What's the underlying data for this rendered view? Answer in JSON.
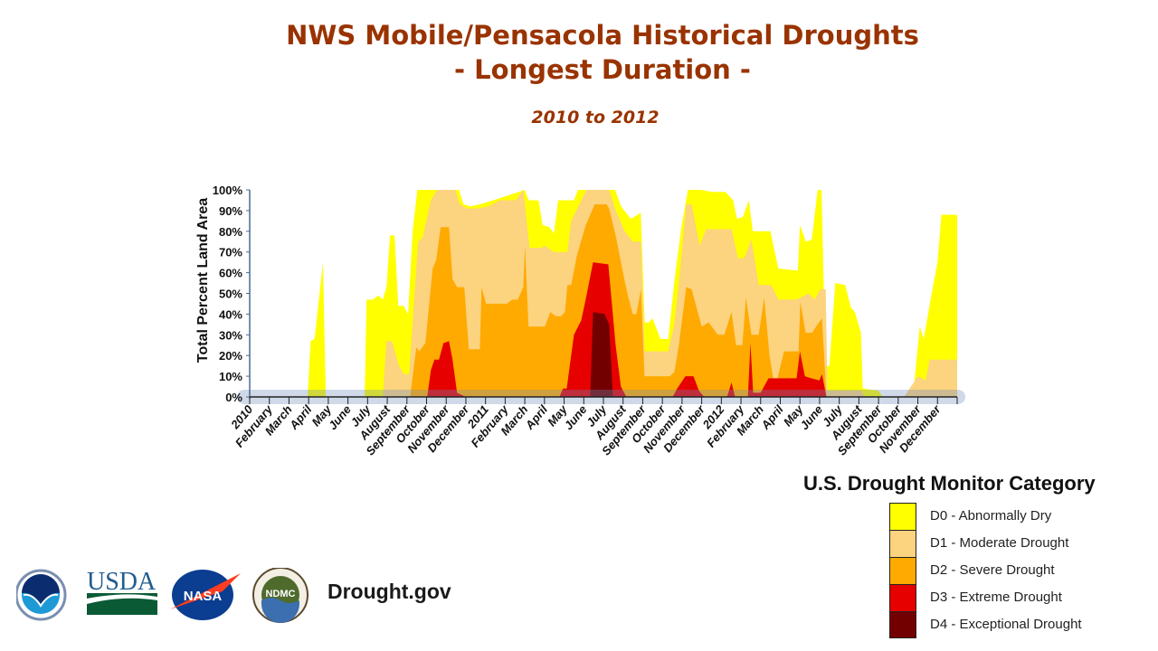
{
  "header": {
    "title_line1": "NWS Mobile/Pensacola Historical Droughts",
    "title_line2": "- Longest Duration -",
    "subtitle": "2010 to 2012"
  },
  "legend": {
    "title": "U.S. Drought Monitor Category",
    "items": [
      {
        "label": "D0 - Abnormally Dry",
        "color": "#FFFF00"
      },
      {
        "label": "D1 - Moderate Drought",
        "color": "#FCD37F"
      },
      {
        "label": "D2 - Severe Drought",
        "color": "#FFAA00"
      },
      {
        "label": "D3 - Extreme Drought",
        "color": "#E60000"
      },
      {
        "label": "D4 - Exceptional Drought",
        "color": "#730000"
      }
    ]
  },
  "footer": {
    "logos": [
      "NOAA",
      "USDA",
      "NASA",
      "NDMC"
    ],
    "site": "Drought.gov"
  },
  "chart_data": {
    "type": "area",
    "title": "NWS Mobile/Pensacola Historical Droughts - Longest Duration -",
    "subtitle": "2010 to 2012",
    "xlabel": "",
    "ylabel": "Total Percent Land Area",
    "ylim": [
      0,
      100
    ],
    "xlim_months": [
      0,
      36
    ],
    "x_unit": "months since Jan 2010",
    "yticks": [
      "0%",
      "10%",
      "20%",
      "30%",
      "40%",
      "50%",
      "60%",
      "70%",
      "80%",
      "90%",
      "100%"
    ],
    "xticks": [
      "2010",
      "February",
      "March",
      "April",
      "May",
      "June",
      "July",
      "August",
      "September",
      "October",
      "November",
      "December",
      "2011",
      "February",
      "March",
      "April",
      "May",
      "June",
      "July",
      "August",
      "September",
      "October",
      "November",
      "December",
      "2012",
      "February",
      "March",
      "April",
      "May",
      "June",
      "July",
      "August",
      "September",
      "October",
      "November",
      "December"
    ],
    "stacking": "cumulative (each series = that category or worse)",
    "series": [
      {
        "name": "D0-D4",
        "color": "#FFFF00",
        "points": [
          [
            0,
            0
          ],
          [
            2.95,
            0
          ],
          [
            3.1,
            27
          ],
          [
            3.3,
            28
          ],
          [
            3.73,
            65
          ],
          [
            3.87,
            0
          ],
          [
            5.85,
            0
          ],
          [
            5.95,
            47
          ],
          [
            6.27,
            47
          ],
          [
            6.54,
            49
          ],
          [
            6.77,
            47
          ],
          [
            6.96,
            53
          ],
          [
            7.14,
            78
          ],
          [
            7.37,
            78
          ],
          [
            7.56,
            44
          ],
          [
            7.83,
            44
          ],
          [
            8.06,
            40
          ],
          [
            8.29,
            80
          ],
          [
            8.53,
            100
          ],
          [
            10.65,
            100
          ],
          [
            10.88,
            93
          ],
          [
            11.24,
            92
          ],
          [
            11.7,
            93
          ],
          [
            12.4,
            95
          ],
          [
            14.0,
            100
          ],
          [
            14.2,
            95
          ],
          [
            14.7,
            95
          ],
          [
            14.9,
            83
          ],
          [
            15.25,
            82
          ],
          [
            15.48,
            79
          ],
          [
            15.7,
            95
          ],
          [
            16.5,
            95
          ],
          [
            16.7,
            100
          ],
          [
            18.6,
            100
          ],
          [
            18.9,
            92
          ],
          [
            19.4,
            86
          ],
          [
            19.9,
            89
          ],
          [
            20.1,
            36
          ],
          [
            20.3,
            36
          ],
          [
            20.5,
            38
          ],
          [
            20.9,
            28
          ],
          [
            21.3,
            28
          ],
          [
            21.6,
            55
          ],
          [
            21.97,
            82
          ],
          [
            22.3,
            100
          ],
          [
            23.0,
            100
          ],
          [
            23.5,
            99
          ],
          [
            24.2,
            99
          ],
          [
            24.6,
            95
          ],
          [
            24.8,
            86
          ],
          [
            25.1,
            87
          ],
          [
            25.4,
            95
          ],
          [
            25.6,
            80
          ],
          [
            26.5,
            80
          ],
          [
            26.9,
            62
          ],
          [
            27.9,
            61
          ],
          [
            28.0,
            83
          ],
          [
            28.3,
            75
          ],
          [
            28.6,
            76
          ],
          [
            28.9,
            100
          ],
          [
            29.1,
            100
          ],
          [
            29.3,
            15
          ],
          [
            29.5,
            15
          ],
          [
            29.8,
            55
          ],
          [
            30.3,
            54
          ],
          [
            30.6,
            43
          ],
          [
            30.8,
            41
          ],
          [
            31.1,
            31
          ],
          [
            31.2,
            4
          ],
          [
            32.0,
            3
          ],
          [
            32.2,
            0
          ],
          [
            33.4,
            0
          ],
          [
            33.8,
            5
          ],
          [
            34.1,
            34
          ],
          [
            34.3,
            28
          ],
          [
            34.7,
            50
          ],
          [
            35.0,
            65
          ],
          [
            35.2,
            88
          ],
          [
            36.0,
            88
          ]
        ]
      },
      {
        "name": "D1-D4",
        "color": "#FCD37F",
        "points": [
          [
            6.77,
            0
          ],
          [
            6.96,
            27
          ],
          [
            7.23,
            27
          ],
          [
            7.6,
            15
          ],
          [
            7.83,
            11
          ],
          [
            8.11,
            11
          ],
          [
            8.57,
            75
          ],
          [
            8.8,
            77
          ],
          [
            9.22,
            95
          ],
          [
            9.54,
            100
          ],
          [
            10.46,
            100
          ],
          [
            10.69,
            93
          ],
          [
            11.06,
            91
          ],
          [
            11.57,
            91
          ],
          [
            12.17,
            92
          ],
          [
            12.72,
            95
          ],
          [
            13.55,
            95
          ],
          [
            13.92,
            100
          ],
          [
            14.24,
            72
          ],
          [
            14.84,
            72
          ],
          [
            15.02,
            73
          ],
          [
            15.48,
            70
          ],
          [
            16.17,
            70
          ],
          [
            16.36,
            85
          ],
          [
            17.14,
            100
          ],
          [
            18.29,
            100
          ],
          [
            18.62,
            90
          ],
          [
            19.08,
            80
          ],
          [
            19.49,
            75
          ],
          [
            19.91,
            75
          ],
          [
            20.09,
            22
          ],
          [
            21.29,
            22
          ],
          [
            21.61,
            35
          ],
          [
            21.84,
            55
          ],
          [
            22.21,
            93
          ],
          [
            22.49,
            93
          ],
          [
            22.9,
            73
          ],
          [
            23.23,
            81
          ],
          [
            24.52,
            81
          ],
          [
            24.84,
            67
          ],
          [
            25.16,
            67
          ],
          [
            25.53,
            76
          ],
          [
            25.9,
            54
          ],
          [
            26.54,
            54
          ],
          [
            26.91,
            47
          ],
          [
            27.83,
            47
          ],
          [
            28.43,
            50
          ],
          [
            28.76,
            47
          ],
          [
            29.03,
            52
          ],
          [
            29.31,
            52
          ],
          [
            29.4,
            3
          ],
          [
            31.1,
            3
          ],
          [
            31.3,
            0
          ],
          [
            33.3,
            0
          ],
          [
            34.0,
            10
          ],
          [
            34.4,
            8
          ],
          [
            34.6,
            18
          ],
          [
            36.0,
            18
          ]
        ]
      },
      {
        "name": "D2-D4",
        "color": "#FFAA00",
        "points": [
          [
            8.16,
            0
          ],
          [
            8.48,
            24
          ],
          [
            8.62,
            22
          ],
          [
            8.94,
            26
          ],
          [
            9.31,
            62
          ],
          [
            9.49,
            66
          ],
          [
            9.72,
            82
          ],
          [
            10.14,
            82
          ],
          [
            10.32,
            57
          ],
          [
            10.55,
            53
          ],
          [
            10.92,
            53
          ],
          [
            11.15,
            23
          ],
          [
            11.71,
            23
          ],
          [
            11.8,
            53
          ],
          [
            12.03,
            45
          ],
          [
            13.09,
            45
          ],
          [
            13.36,
            47
          ],
          [
            13.64,
            47
          ],
          [
            13.92,
            53
          ],
          [
            14.01,
            73
          ],
          [
            14.19,
            34
          ],
          [
            15.02,
            34
          ],
          [
            15.3,
            41
          ],
          [
            15.58,
            39
          ],
          [
            15.85,
            39
          ],
          [
            16.04,
            41
          ],
          [
            16.17,
            54
          ],
          [
            16.36,
            54
          ],
          [
            16.64,
            68
          ],
          [
            17.1,
            83
          ],
          [
            17.56,
            93
          ],
          [
            18.16,
            93
          ],
          [
            18.29,
            91
          ],
          [
            18.62,
            78
          ],
          [
            19.08,
            56
          ],
          [
            19.22,
            50
          ],
          [
            19.49,
            40
          ],
          [
            19.68,
            40
          ],
          [
            19.91,
            52
          ],
          [
            20.09,
            10
          ],
          [
            21.38,
            10
          ],
          [
            21.61,
            12
          ],
          [
            21.84,
            25
          ],
          [
            22.21,
            53
          ],
          [
            22.49,
            52
          ],
          [
            23.0,
            34
          ],
          [
            23.36,
            36
          ],
          [
            23.82,
            30
          ],
          [
            24.15,
            30
          ],
          [
            24.52,
            41
          ],
          [
            24.75,
            25
          ],
          [
            25.07,
            25
          ],
          [
            25.25,
            48
          ],
          [
            25.53,
            30
          ],
          [
            25.9,
            30
          ],
          [
            26.18,
            48
          ],
          [
            26.45,
            20
          ],
          [
            26.73,
            4
          ],
          [
            27.19,
            22
          ],
          [
            27.93,
            22
          ],
          [
            28.02,
            46
          ],
          [
            28.29,
            31
          ],
          [
            28.62,
            31
          ],
          [
            28.89,
            35
          ],
          [
            29.12,
            38
          ],
          [
            29.35,
            0
          ]
        ]
      },
      {
        "name": "D3-D4",
        "color": "#E60000",
        "points": [
          [
            9.03,
            0
          ],
          [
            9.22,
            13
          ],
          [
            9.4,
            18
          ],
          [
            9.63,
            18
          ],
          [
            9.86,
            26
          ],
          [
            10.14,
            27
          ],
          [
            10.32,
            18
          ],
          [
            10.55,
            2
          ],
          [
            11.0,
            0
          ],
          [
            15.76,
            0
          ],
          [
            15.94,
            4
          ],
          [
            16.13,
            4
          ],
          [
            16.5,
            30
          ],
          [
            16.87,
            37
          ],
          [
            17.14,
            49
          ],
          [
            17.47,
            65
          ],
          [
            18.25,
            64
          ],
          [
            18.62,
            25
          ],
          [
            18.89,
            5
          ],
          [
            19.17,
            0
          ],
          [
            21.52,
            0
          ],
          [
            21.75,
            4
          ],
          [
            22.17,
            10
          ],
          [
            22.58,
            10
          ],
          [
            22.86,
            3
          ],
          [
            23.13,
            0
          ],
          [
            24.29,
            0
          ],
          [
            24.52,
            7
          ],
          [
            24.7,
            0
          ],
          [
            25.35,
            0
          ],
          [
            25.48,
            26
          ],
          [
            25.62,
            2
          ],
          [
            26.0,
            2
          ],
          [
            26.4,
            9
          ],
          [
            27.83,
            9
          ],
          [
            28.0,
            22
          ],
          [
            28.25,
            10
          ],
          [
            28.57,
            9
          ],
          [
            28.99,
            8
          ],
          [
            29.12,
            11
          ],
          [
            29.35,
            0
          ]
        ]
      },
      {
        "name": "D4",
        "color": "#730000",
        "points": [
          [
            17.33,
            0
          ],
          [
            17.47,
            41
          ],
          [
            18.06,
            40
          ],
          [
            18.29,
            35
          ],
          [
            18.48,
            0
          ]
        ]
      }
    ]
  }
}
